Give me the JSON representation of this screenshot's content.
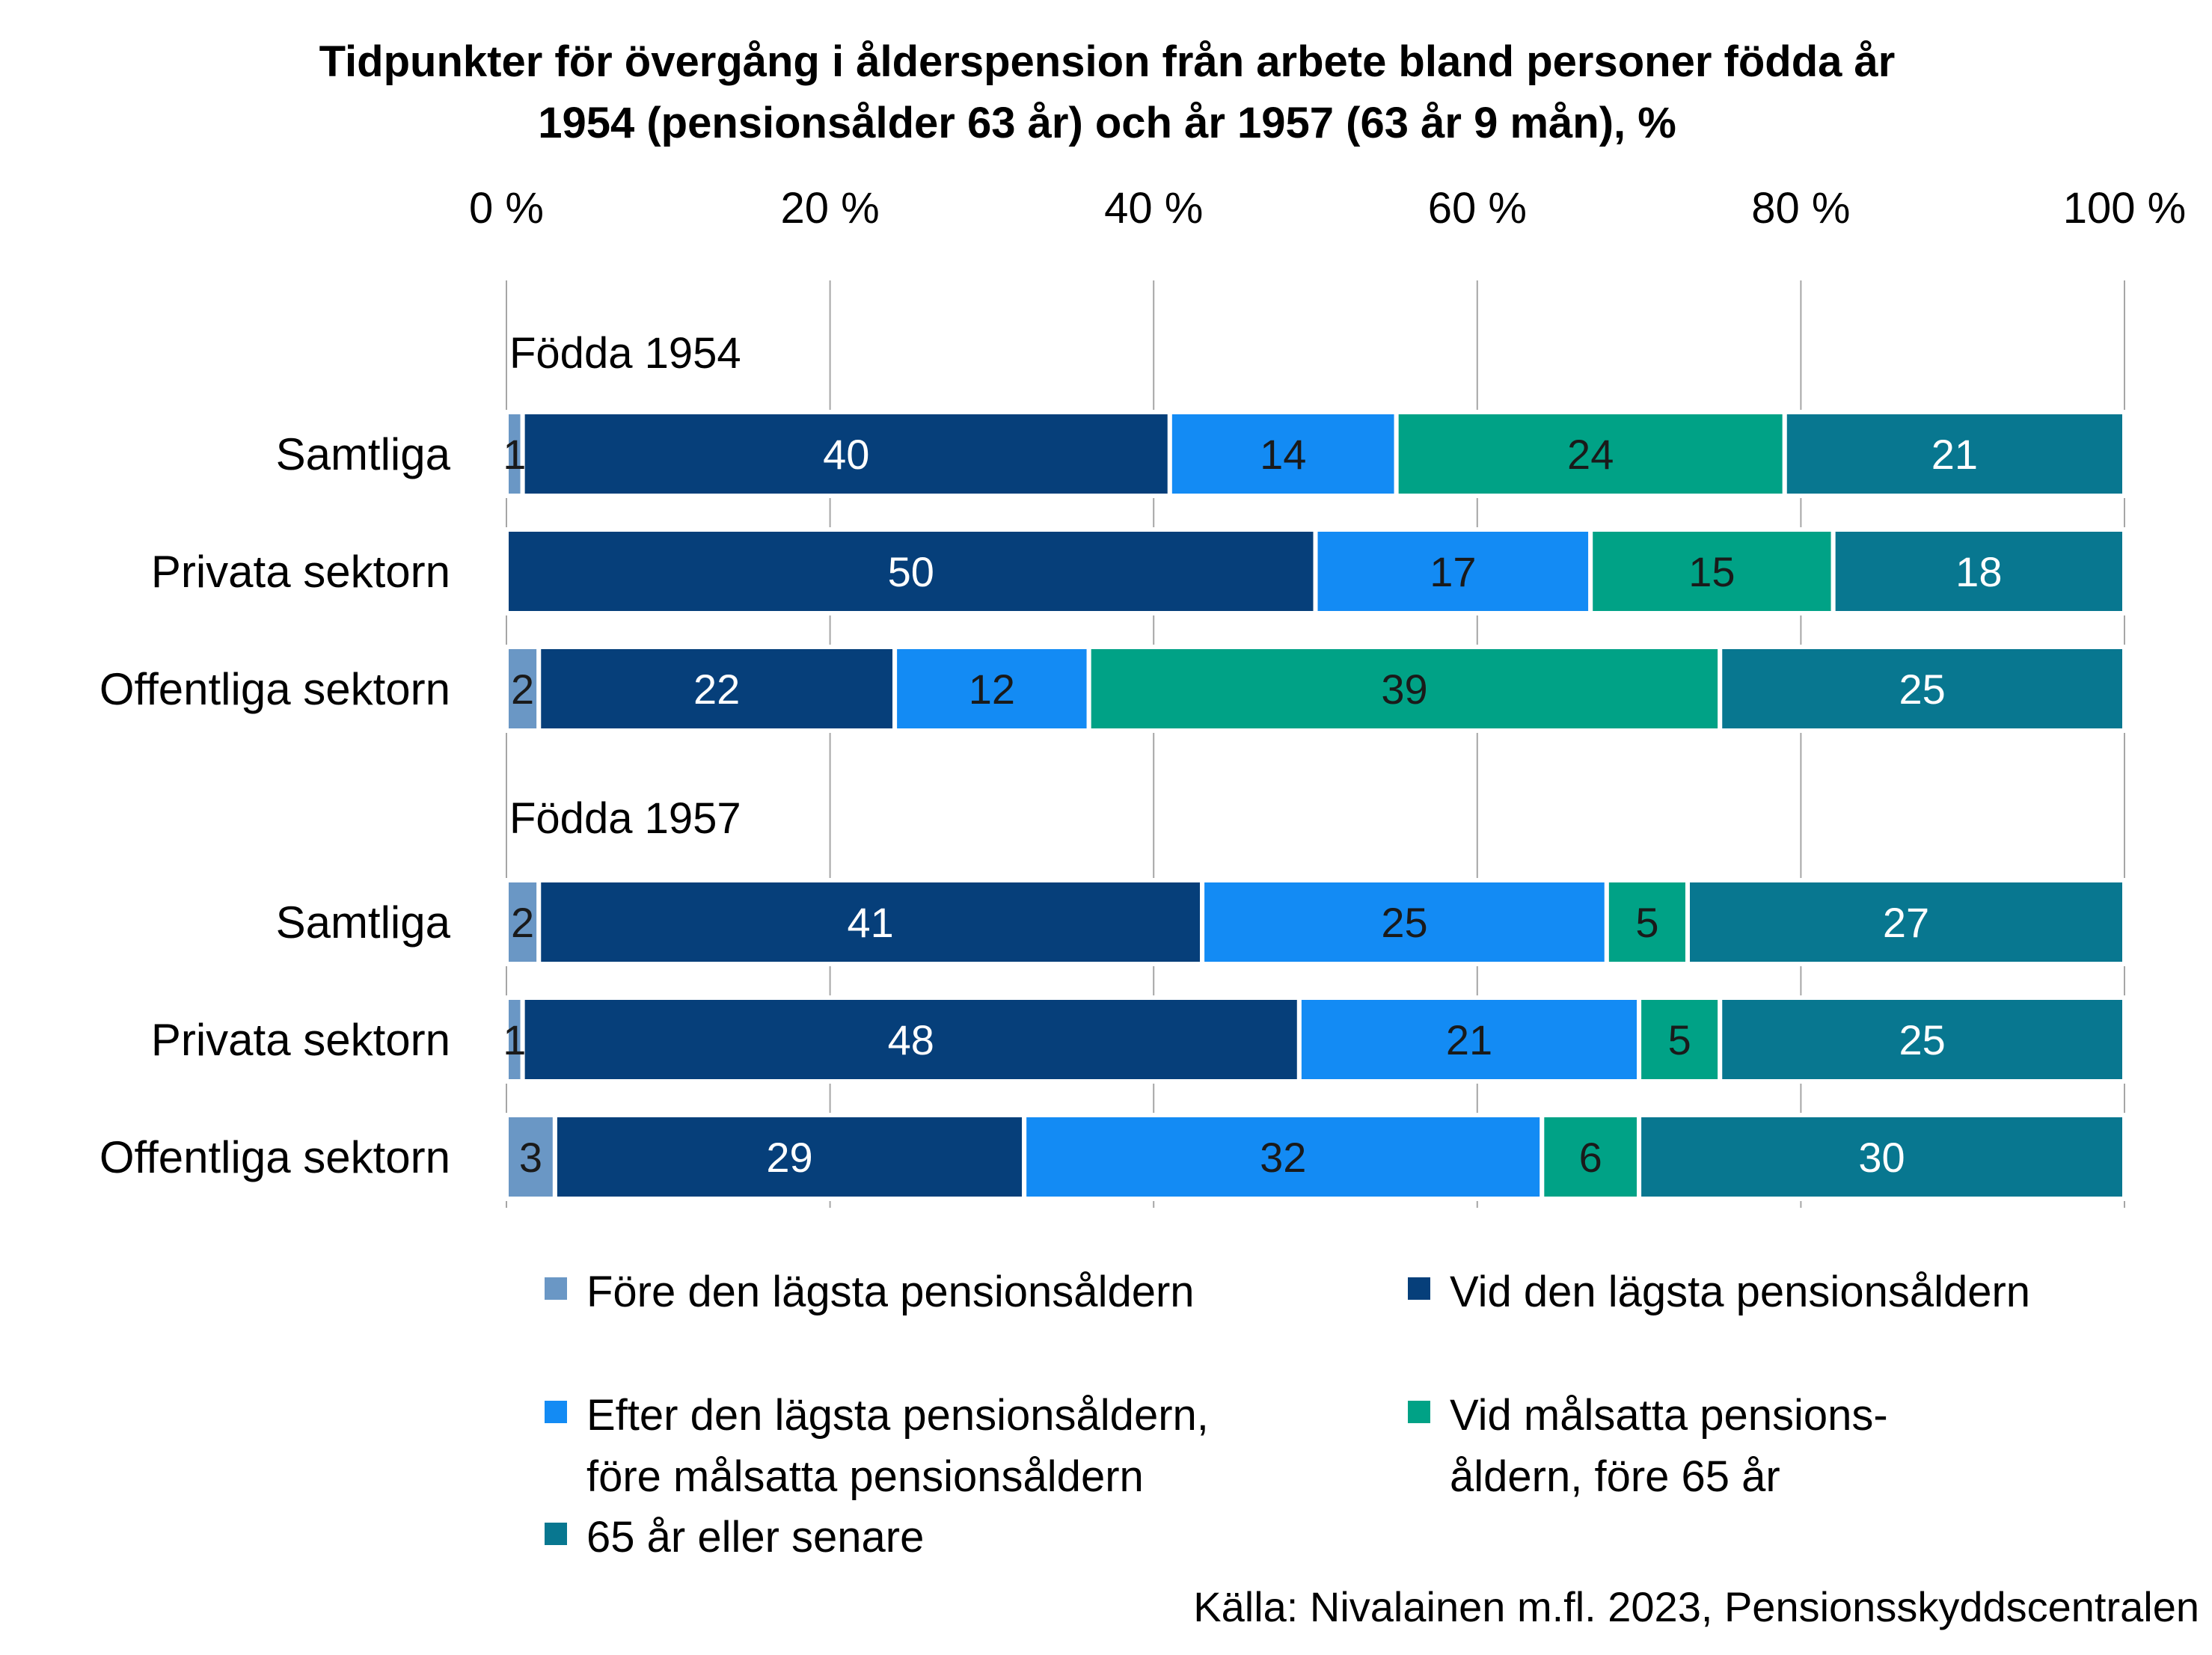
{
  "chart_data": {
    "type": "bar",
    "orientation": "horizontal",
    "stacked": true,
    "title": "Tidpunkter för övergång i ålderspension från arbete bland personer födda år 1954 (pensionsålder 63 år) och år 1957 (63 år 9 mån), %",
    "title_lines": [
      "Tidpunkter för övergång i ålderspension från arbete bland personer födda år",
      "1954 (pensionsålder 63 år) och år 1957 (63 år 9 mån), %"
    ],
    "xlim": [
      0,
      100
    ],
    "x_ticks": [
      0,
      20,
      40,
      60,
      80,
      100
    ],
    "x_tick_labels": [
      "0 %",
      "20 %",
      "40 %",
      "60 %",
      "80 %",
      "100 %"
    ],
    "x_axis_position": "top",
    "grid": true,
    "groups": [
      {
        "label": "Födda 1954",
        "categories": [
          "Samtliga",
          "Privata sektorn",
          "Offentliga sektorn"
        ],
        "values": [
          [
            1,
            40,
            14,
            24,
            21
          ],
          [
            0,
            50,
            17,
            15,
            18
          ],
          [
            2,
            22,
            12,
            39,
            25
          ]
        ]
      },
      {
        "label": "Födda 1957",
        "categories": [
          "Samtliga",
          "Privata sektorn",
          "Offentliga sektorn"
        ],
        "values": [
          [
            2,
            41,
            25,
            5,
            27
          ],
          [
            1,
            48,
            21,
            5,
            25
          ],
          [
            3,
            29,
            32,
            6,
            30
          ]
        ]
      }
    ],
    "series": [
      {
        "name": "Före den lägsta pensionsåldern",
        "color": "#6a97c5",
        "label_color": "#1a1a1a"
      },
      {
        "name": "Vid den lägsta pensionsåldern",
        "color": "#063f7a",
        "label_color": "#ffffff"
      },
      {
        "name": "Efter den lägsta pensionsåldern, före målsatta pensionsåldern",
        "color": "#138bf4",
        "label_color": "#1a1a1a"
      },
      {
        "name": "Vid målsatta pensionsåldern, före 65 år",
        "color": "#00a286",
        "label_color": "#1a1a1a"
      },
      {
        "name": "65 år eller senare",
        "color": "#087790",
        "label_color": "#ffffff"
      }
    ],
    "legend": {
      "placement": "bottom",
      "entries": [
        {
          "series": 0,
          "lines": [
            "Före den lägsta pensionsåldern"
          ]
        },
        {
          "series": 1,
          "lines": [
            "Vid den lägsta pensionsåldern"
          ]
        },
        {
          "series": 2,
          "lines": [
            "Efter den lägsta pensionsåldern,",
            "före målsatta pensionsåldern"
          ]
        },
        {
          "series": 3,
          "lines": [
            "Vid målsatta pensions-",
            "åldern, före 65 år"
          ]
        },
        {
          "series": 4,
          "lines": [
            "65 år eller senare"
          ]
        }
      ]
    },
    "source": "Källa: Nivalainen m.fl. 2023, Pensionsskyddscentralen"
  }
}
